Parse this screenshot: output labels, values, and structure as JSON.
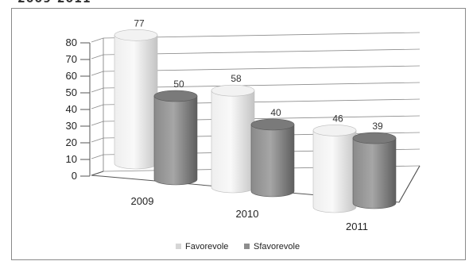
{
  "header": {
    "title": "2009-2011"
  },
  "chart_data": {
    "type": "bar",
    "categories": [
      "2009",
      "2010",
      "2011"
    ],
    "series": [
      {
        "name": "Favorevole",
        "values": [
          77,
          58,
          46
        ],
        "color": "#d6d6d6"
      },
      {
        "name": "Sfavorevole",
        "values": [
          50,
          40,
          39
        ],
        "color": "#8e8e8e"
      }
    ],
    "y_ticks": [
      "0",
      "10",
      "20",
      "30",
      "40",
      "50",
      "60",
      "70",
      "80"
    ],
    "ylim": [
      0,
      80
    ],
    "grid": true,
    "legend_position": "bottom"
  }
}
